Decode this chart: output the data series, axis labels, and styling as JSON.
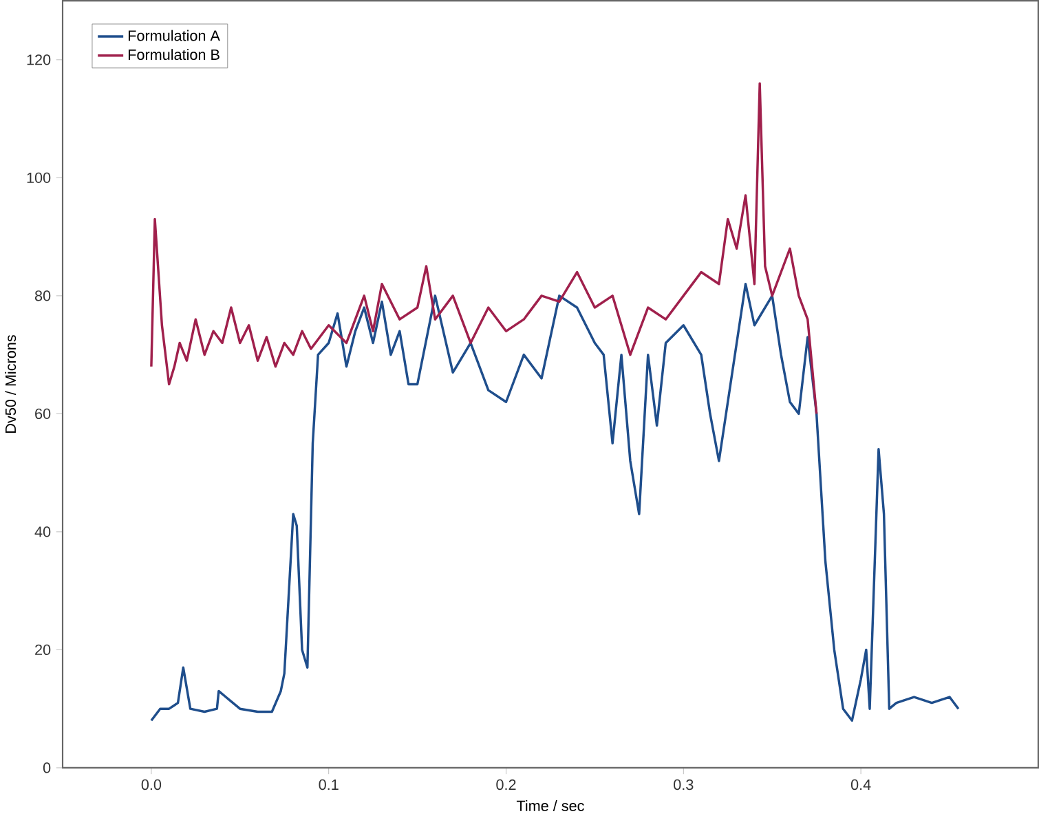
{
  "chart_data": {
    "type": "line",
    "xlabel": "Time / sec",
    "ylabel": "Dv50 / Microns",
    "xlim": [
      -0.05,
      0.5
    ],
    "ylim": [
      0,
      130
    ],
    "xticks": [
      {
        "value": 0.0,
        "label": "0.0"
      },
      0.1,
      0.2,
      0.3,
      0.4
    ],
    "yticks": [
      0,
      20,
      40,
      60,
      80,
      100,
      120
    ],
    "grid": false,
    "legend": "top left",
    "series": [
      {
        "name": "Formulation A",
        "color": "#1f4e8c",
        "x": [
          0.0,
          0.005,
          0.01,
          0.015,
          0.018,
          0.022,
          0.03,
          0.037,
          0.038,
          0.042,
          0.05,
          0.06,
          0.068,
          0.073,
          0.075,
          0.08,
          0.082,
          0.085,
          0.088,
          0.091,
          0.094,
          0.1,
          0.105,
          0.11,
          0.115,
          0.12,
          0.125,
          0.13,
          0.135,
          0.14,
          0.145,
          0.15,
          0.16,
          0.17,
          0.18,
          0.19,
          0.2,
          0.21,
          0.22,
          0.23,
          0.24,
          0.25,
          0.255,
          0.26,
          0.265,
          0.27,
          0.275,
          0.28,
          0.285,
          0.29,
          0.3,
          0.31,
          0.315,
          0.32,
          0.33,
          0.335,
          0.34,
          0.35,
          0.355,
          0.36,
          0.365,
          0.37,
          0.375,
          0.38,
          0.385,
          0.39,
          0.395,
          0.4,
          0.403,
          0.405,
          0.41,
          0.413,
          0.416,
          0.42,
          0.43,
          0.44,
          0.45,
          0.455
        ],
        "values": [
          8,
          10,
          10,
          11,
          17,
          10,
          9.5,
          10,
          13,
          12,
          10,
          9.5,
          9.5,
          13,
          16,
          43,
          41,
          20,
          17,
          55,
          70,
          72,
          77,
          68,
          74,
          78,
          72,
          79,
          70,
          74,
          65,
          65,
          80,
          67,
          72,
          64,
          62,
          70,
          66,
          80,
          78,
          72,
          70,
          55,
          70,
          52,
          43,
          70,
          58,
          72,
          75,
          70,
          60,
          52,
          72,
          82,
          75,
          80,
          70,
          62,
          60,
          73,
          60,
          35,
          20,
          10,
          8,
          15,
          20,
          10,
          54,
          43,
          10,
          11,
          12,
          11,
          12,
          10
        ]
      },
      {
        "name": "Formulation B",
        "color": "#a0204c",
        "x": [
          0.0,
          0.002,
          0.006,
          0.01,
          0.013,
          0.016,
          0.02,
          0.025,
          0.03,
          0.035,
          0.04,
          0.045,
          0.05,
          0.055,
          0.06,
          0.065,
          0.07,
          0.075,
          0.08,
          0.085,
          0.09,
          0.1,
          0.11,
          0.12,
          0.125,
          0.13,
          0.14,
          0.15,
          0.155,
          0.16,
          0.17,
          0.18,
          0.19,
          0.2,
          0.21,
          0.22,
          0.23,
          0.24,
          0.25,
          0.26,
          0.27,
          0.28,
          0.29,
          0.3,
          0.31,
          0.32,
          0.325,
          0.33,
          0.335,
          0.34,
          0.343,
          0.346,
          0.35,
          0.36,
          0.365,
          0.37,
          0.375
        ],
        "values": [
          68,
          93,
          75,
          65,
          68,
          72,
          69,
          76,
          70,
          74,
          72,
          78,
          72,
          75,
          69,
          73,
          68,
          72,
          70,
          74,
          71,
          75,
          72,
          80,
          74,
          82,
          76,
          78,
          85,
          76,
          80,
          72,
          78,
          74,
          76,
          80,
          79,
          84,
          78,
          80,
          70,
          78,
          76,
          80,
          84,
          82,
          93,
          88,
          97,
          82,
          116,
          85,
          80,
          88,
          80,
          76,
          60
        ]
      }
    ]
  }
}
